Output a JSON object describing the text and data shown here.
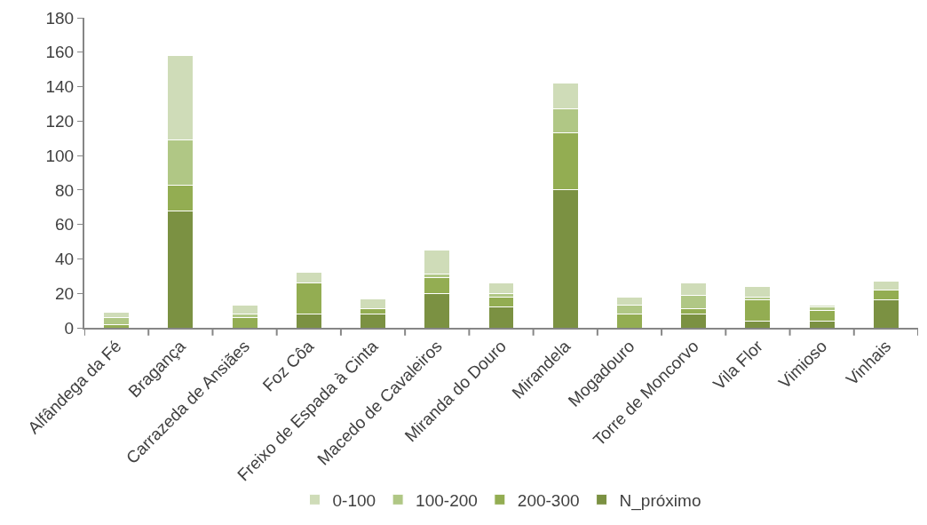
{
  "chart_data": {
    "type": "bar",
    "stacked": true,
    "categories": [
      "Alfândega da Fé",
      "Bragança",
      "Carrazeda de Ansiães",
      "Foz Côa",
      "Freixo de Espada à Cinta",
      "Macedo de Cavaleiros",
      "Miranda do Douro",
      "Mirandela",
      "Mogadouro",
      "Torre de Moncorvo",
      "Vila Flor",
      "Vimioso",
      "Vinhais"
    ],
    "series": [
      {
        "name": "N_próximo",
        "color": "#7b9142",
        "values": [
          0,
          68,
          0,
          8,
          8,
          20,
          12,
          80,
          0,
          8,
          4,
          4,
          16
        ]
      },
      {
        "name": "200-300",
        "color": "#93ad52",
        "values": [
          2,
          15,
          6,
          18,
          3,
          9,
          6,
          33,
          8,
          3,
          12,
          6,
          6
        ]
      },
      {
        "name": "100-200",
        "color": "#b0c785",
        "values": [
          4,
          26,
          2,
          0,
          0,
          2,
          2,
          14,
          5,
          8,
          2,
          2,
          0
        ]
      },
      {
        "name": "0-100",
        "color": "#cfdcb8",
        "values": [
          3,
          49,
          5,
          6,
          6,
          14,
          6,
          15,
          5,
          7,
          6,
          1,
          5
        ]
      }
    ],
    "ylim": [
      0,
      180
    ],
    "yticks": [
      0,
      20,
      40,
      60,
      80,
      100,
      120,
      140,
      160,
      180
    ],
    "legend": "bottom"
  }
}
